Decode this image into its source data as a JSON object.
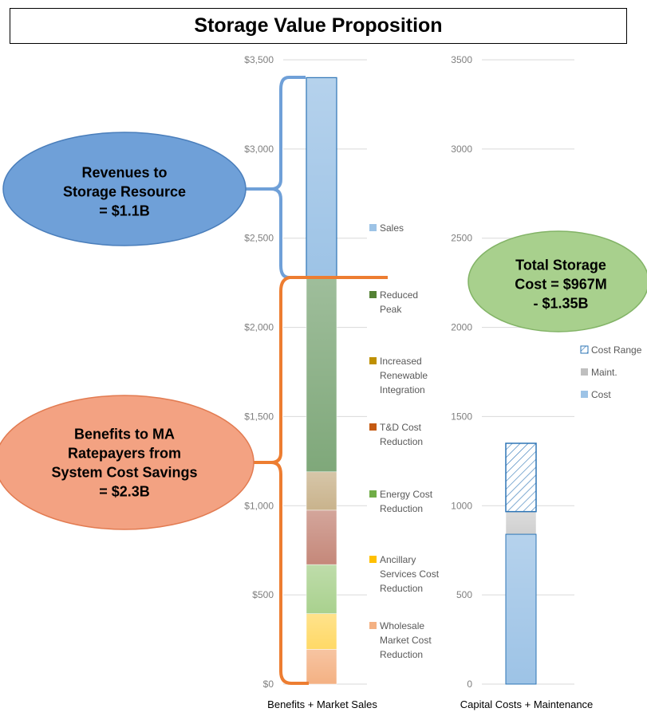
{
  "title": "Storage Value Proposition",
  "chart_data": [
    {
      "type": "bar",
      "stacked": true,
      "category": "Benefits + Market Sales",
      "ylim": [
        0,
        3500
      ],
      "yticks": [
        "$0",
        "$500",
        "$1,000",
        "$1,500",
        "$2,000",
        "$2,500",
        "$3,000",
        "$3,500"
      ],
      "grid": false,
      "legend_position": "right",
      "series": [
        {
          "name": "Wholesale Market Cost Reduction",
          "value": 195,
          "color": "#F4B183"
        },
        {
          "name": "Ancillary Services Cost Reduction",
          "value": 200,
          "color": "#FFD966"
        },
        {
          "name": "Energy Cost Reduction",
          "value": 275,
          "color": "#A9D18E"
        },
        {
          "name": "T&D Cost Reduction",
          "value": 305,
          "color": "#C5887A"
        },
        {
          "name": "Increased Renewable Integration",
          "value": 215,
          "color": "#C9B38C"
        },
        {
          "name": "Reduced Peak",
          "value": 1095,
          "color": "#7FA87A"
        },
        {
          "name": "Sales",
          "value": 1115,
          "color": "#9DC3E6"
        }
      ]
    },
    {
      "type": "bar",
      "stacked": true,
      "category": "Capital Costs + Maintenance",
      "ylim": [
        0,
        3500
      ],
      "yticks": [
        "0",
        "500",
        "1000",
        "1500",
        "2000",
        "2500",
        "3000",
        "3500"
      ],
      "grid": true,
      "legend_position": "right",
      "series": [
        {
          "name": "Cost",
          "value": 840,
          "color": "#9DC3E6"
        },
        {
          "name": "Maint.",
          "value": 127,
          "color": "#D0D0D0"
        },
        {
          "name": "Cost Range",
          "value": 383,
          "color": "#2E75B6",
          "pattern": "hatched"
        }
      ]
    }
  ],
  "callouts": {
    "revenues": {
      "lines": [
        "Revenues to",
        "Storage Resource",
        "= $1.1B"
      ],
      "color": "#6FA0D8"
    },
    "benefits": {
      "lines": [
        "Benefits to MA",
        "Ratepayers from",
        "System Cost Savings",
        "= $2.3B"
      ],
      "color": "#F3A282"
    },
    "total_cost": {
      "lines": [
        "Total Storage",
        "Cost = $967M",
        "- $1.35B"
      ],
      "color": "#A8D08D"
    }
  },
  "legend_left": [
    {
      "lines": [
        "Sales"
      ],
      "color": "#9DC3E6"
    },
    {
      "lines": [
        "Reduced",
        "Peak"
      ],
      "color": "#548235"
    },
    {
      "lines": [
        "Increased",
        "Renewable",
        "Integration"
      ],
      "color": "#BF9000"
    },
    {
      "lines": [
        "T&D Cost",
        "Reduction"
      ],
      "color": "#C55A11"
    },
    {
      "lines": [
        "Energy Cost",
        "Reduction"
      ],
      "color": "#70AD47"
    },
    {
      "lines": [
        "Ancillary",
        "Services Cost",
        "Reduction"
      ],
      "color": "#FFC000"
    },
    {
      "lines": [
        "Wholesale",
        "Market Cost",
        "Reduction"
      ],
      "color": "#F4B183"
    }
  ],
  "legend_right": [
    {
      "lines": [
        "Cost Range"
      ],
      "color": "#2E75B6",
      "pattern": "hatched"
    },
    {
      "lines": [
        "Maint."
      ],
      "color": "#BFBFBF"
    },
    {
      "lines": [
        "Cost"
      ],
      "color": "#9DC3E6"
    }
  ]
}
